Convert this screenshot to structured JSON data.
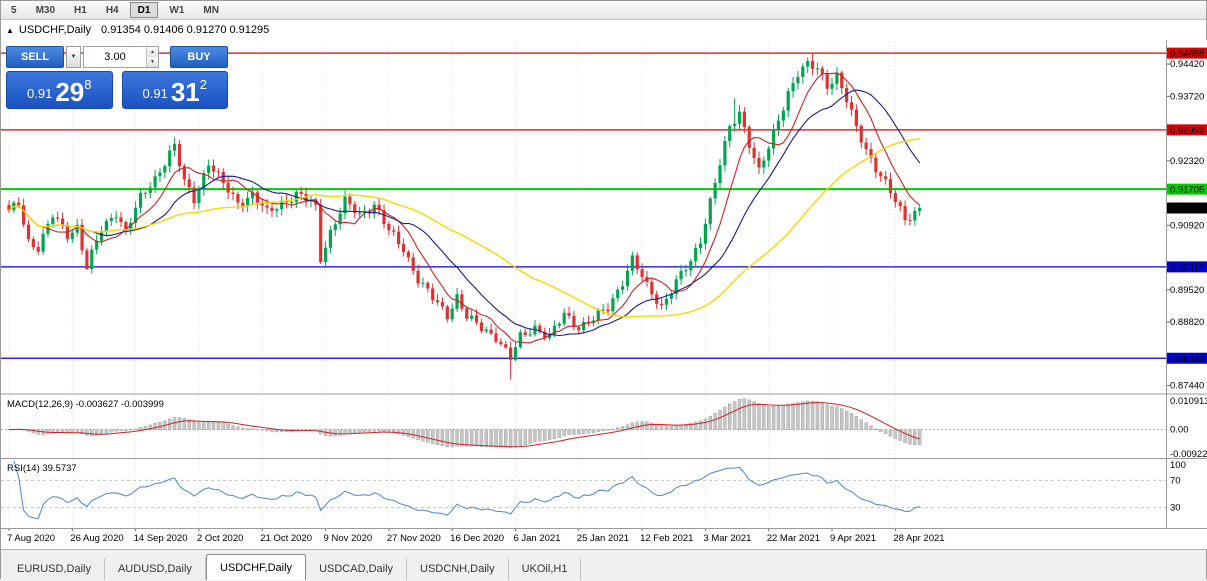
{
  "toolbar": {
    "periods": [
      "5",
      "M30",
      "H1",
      "H4",
      "D1",
      "W1",
      "MN"
    ],
    "active_period": "D1"
  },
  "title": {
    "symbol": "USDCHF,Daily",
    "ohlc": "0.91354 0.91406 0.91270 0.91295"
  },
  "trade_panel": {
    "sell_label": "SELL",
    "buy_label": "BUY",
    "volume": "3.00",
    "sell_price_prefix": "0.91",
    "sell_price_big": "29",
    "sell_price_sup": "8",
    "buy_price_prefix": "0.91",
    "buy_price_big": "31",
    "buy_price_sup": "2"
  },
  "chart_data": {
    "type": "candlestick",
    "symbol": "USDCHF",
    "timeframe": "Daily",
    "price_range": [
      0.873,
      0.949
    ],
    "num_candles": 188,
    "candle_colors": {
      "up": "#00a550",
      "down": "#e03030"
    },
    "close_anchors": [
      [
        0,
        0.912
      ],
      [
        2,
        0.9138
      ],
      [
        4,
        0.9058
      ],
      [
        6,
        0.9045
      ],
      [
        9,
        0.9112
      ],
      [
        12,
        0.9072
      ],
      [
        14,
        0.909
      ],
      [
        16,
        0.9
      ],
      [
        19,
        0.9082
      ],
      [
        22,
        0.9122
      ],
      [
        24,
        0.9078
      ],
      [
        27,
        0.915
      ],
      [
        30,
        0.9195
      ],
      [
        33,
        0.9248
      ],
      [
        34,
        0.9262
      ],
      [
        36,
        0.9185
      ],
      [
        38,
        0.915
      ],
      [
        41,
        0.9228
      ],
      [
        44,
        0.918
      ],
      [
        47,
        0.9142
      ],
      [
        50,
        0.9158
      ],
      [
        53,
        0.9118
      ],
      [
        56,
        0.9142
      ],
      [
        59,
        0.9158
      ],
      [
        62,
        0.9142
      ],
      [
        63,
        0.913
      ],
      [
        64,
        0.9022
      ],
      [
        66,
        0.9078
      ],
      [
        69,
        0.9142
      ],
      [
        72,
        0.9115
      ],
      [
        75,
        0.9138
      ],
      [
        78,
        0.9078
      ],
      [
        81,
        0.9042
      ],
      [
        84,
        0.8975
      ],
      [
        87,
        0.8932
      ],
      [
        90,
        0.8898
      ],
      [
        92,
        0.8938
      ],
      [
        94,
        0.8892
      ],
      [
        97,
        0.8868
      ],
      [
        100,
        0.8852
      ],
      [
        103,
        0.8802
      ],
      [
        105,
        0.8848
      ],
      [
        108,
        0.8872
      ],
      [
        111,
        0.8848
      ],
      [
        114,
        0.8898
      ],
      [
        117,
        0.8872
      ],
      [
        120,
        0.8888
      ],
      [
        123,
        0.8912
      ],
      [
        126,
        0.8972
      ],
      [
        128,
        0.9018
      ],
      [
        131,
        0.8958
      ],
      [
        134,
        0.8918
      ],
      [
        137,
        0.8968
      ],
      [
        140,
        0.9012
      ],
      [
        142,
        0.9062
      ],
      [
        144,
        0.9145
      ],
      [
        146,
        0.9225
      ],
      [
        148,
        0.9302
      ],
      [
        150,
        0.9338
      ],
      [
        152,
        0.9272
      ],
      [
        154,
        0.9208
      ],
      [
        156,
        0.9258
      ],
      [
        158,
        0.9322
      ],
      [
        160,
        0.9382
      ],
      [
        162,
        0.9422
      ],
      [
        164,
        0.9438
      ],
      [
        166,
        0.9432
      ],
      [
        168,
        0.9398
      ],
      [
        170,
        0.9418
      ],
      [
        172,
        0.9362
      ],
      [
        174,
        0.9302
      ],
      [
        176,
        0.9258
      ],
      [
        178,
        0.9218
      ],
      [
        180,
        0.9182
      ],
      [
        182,
        0.9142
      ],
      [
        184,
        0.9106
      ],
      [
        186,
        0.9122
      ],
      [
        187,
        0.91295
      ]
    ],
    "special_wicks": [
      [
        16,
        "low",
        0.8995
      ],
      [
        34,
        "high",
        0.9282
      ],
      [
        64,
        "low",
        0.9008
      ],
      [
        103,
        "low",
        0.8757
      ],
      [
        149,
        "high",
        0.9368
      ],
      [
        165,
        "high",
        0.9464
      ]
    ],
    "levels": [
      {
        "price": 0.94658,
        "label": "0.94658",
        "color": "#dd0000",
        "width": 1.3
      },
      {
        "price": 0.92992,
        "label": "0.92992",
        "color": "#dd0000",
        "width": 1.3
      },
      {
        "price": 0.91705,
        "label": "0.91705",
        "color": "#00cc00",
        "width": 2
      },
      {
        "price": 0.90017,
        "label": "0.90017",
        "color": "#0000dd",
        "width": 1.3
      },
      {
        "price": 0.88033,
        "label": "0.88033",
        "color": "#0000dd",
        "width": 1.3
      }
    ],
    "current_price": {
      "value": 0.91295,
      "label": "0.91295",
      "color": "#000000"
    },
    "scale_labels": [
      "0.94420",
      "0.93720",
      "0.92320",
      "0.90920",
      "0.89520",
      "0.88820",
      "0.87440"
    ],
    "moving_averages": [
      {
        "period": 8,
        "color": "#cc2222",
        "width": 1.1
      },
      {
        "period": 18,
        "color": "#1a1a8c",
        "width": 1.1
      },
      {
        "period": 45,
        "color": "#ffd400",
        "width": 1.4
      }
    ],
    "x_labels": [
      {
        "i": 0,
        "text": "7 Aug 2020"
      },
      {
        "i": 13,
        "text": "26 Aug 2020"
      },
      {
        "i": 26,
        "text": "14 Sep 2020"
      },
      {
        "i": 39,
        "text": "2 Oct 2020"
      },
      {
        "i": 52,
        "text": "21 Oct 2020"
      },
      {
        "i": 65,
        "text": "9 Nov 2020"
      },
      {
        "i": 78,
        "text": "27 Nov 2020"
      },
      {
        "i": 91,
        "text": "16 Dec 2020"
      },
      {
        "i": 104,
        "text": "6 Jan 2021"
      },
      {
        "i": 117,
        "text": "25 Jan 2021"
      },
      {
        "i": 130,
        "text": "12 Feb 2021"
      },
      {
        "i": 143,
        "text": "3 Mar 2021"
      },
      {
        "i": 156,
        "text": "22 Mar 2021"
      },
      {
        "i": 169,
        "text": "9 Apr 2021"
      },
      {
        "i": 182,
        "text": "28 Apr 2021"
      }
    ],
    "macd": {
      "label": "MACD(12,26,9)",
      "values_text": "-0.003627 -0.003999",
      "fast": 12,
      "slow": 26,
      "signal": 9,
      "range": [
        -0.00922,
        0.010913
      ],
      "scale_top": "0.010913",
      "scale_zero": "0.00",
      "scale_bottom": "-0.00922"
    },
    "rsi": {
      "label": "RSI(14)",
      "value_text": "39.5737",
      "period": 14,
      "levels": [
        70,
        30
      ],
      "scale_labels": [
        "100",
        "70",
        "30"
      ]
    }
  },
  "tabs": {
    "items": [
      "EURUSD,Daily",
      "AUDUSD,Daily",
      "USDCHF,Daily",
      "USDCAD,Daily",
      "USDCNH,Daily",
      "UKOil,H1"
    ],
    "active": "USDCHF,Daily"
  }
}
